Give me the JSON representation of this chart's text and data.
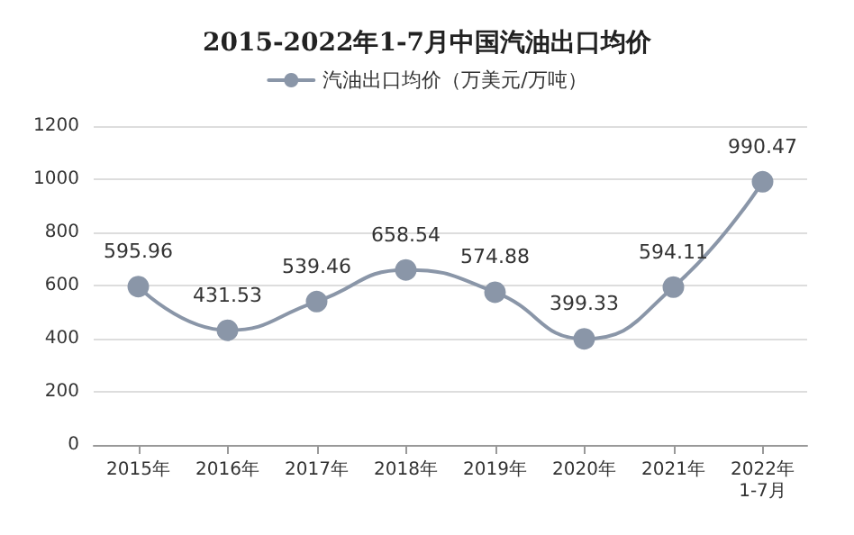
{
  "chart_data": {
    "type": "line",
    "title": "2015-2022年1-7月中国汽油出口均价",
    "categories": [
      "2015年",
      "2016年",
      "2017年",
      "2018年",
      "2019年",
      "2020年",
      "2021年",
      "2022年\n1-7月"
    ],
    "series": [
      {
        "name": "汽油出口均价（万美元/万吨）",
        "color": "#8a96a8",
        "values": [
          595.96,
          431.53,
          539.46,
          658.54,
          574.88,
          399.33,
          594.11,
          990.47
        ]
      }
    ],
    "ylim": [
      0,
      1200
    ],
    "yticks": [
      0,
      200,
      400,
      600,
      800,
      1000,
      1200
    ],
    "grid": "y",
    "legend": "top",
    "data_labels": true,
    "marker": "circle",
    "line_style": "solid"
  }
}
